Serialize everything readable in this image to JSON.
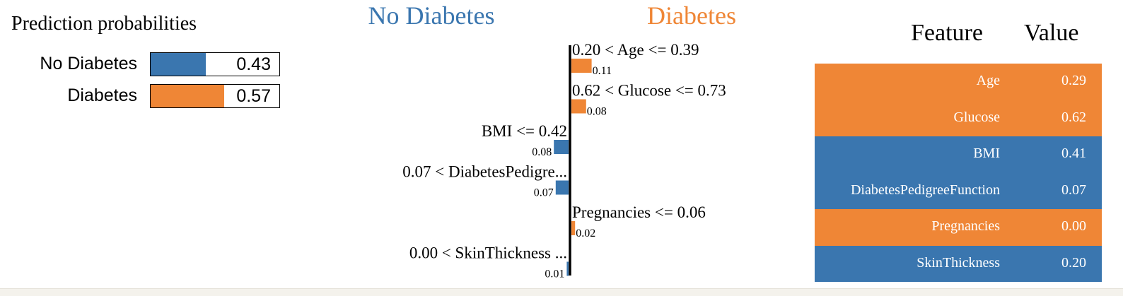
{
  "colors": {
    "negative": "#3a76af",
    "positive": "#ef8636",
    "axis": "#000000"
  },
  "prediction": {
    "title": "Prediction probabilities",
    "classes": [
      {
        "label": "No Diabetes",
        "value": "0.43",
        "prob": 0.43,
        "color": "#3a76af"
      },
      {
        "label": "Diabetes",
        "value": "0.57",
        "prob": 0.57,
        "color": "#ef8636"
      }
    ]
  },
  "chart_data": {
    "type": "bar",
    "orientation": "horizontal",
    "left_class": "No Diabetes",
    "right_class": "Diabetes",
    "bars": [
      {
        "label": "0.20 < Age <= 0.39",
        "value": 0.11,
        "value_label": "0.11",
        "side": "right"
      },
      {
        "label": "0.62 < Glucose <= 0.73",
        "value": 0.08,
        "value_label": "0.08",
        "side": "right"
      },
      {
        "label": "BMI <= 0.42",
        "value": 0.08,
        "value_label": "0.08",
        "side": "left"
      },
      {
        "label": "0.07 < DiabetesPedigre...",
        "value": 0.07,
        "value_label": "0.07",
        "side": "left"
      },
      {
        "label": "Pregnancies <= 0.06",
        "value": 0.02,
        "value_label": "0.02",
        "side": "right"
      },
      {
        "label": "0.00 < SkinThickness ...",
        "value": 0.01,
        "value_label": "0.01",
        "side": "left"
      }
    ]
  },
  "table": {
    "headers": {
      "feature": "Feature",
      "value": "Value"
    },
    "rows": [
      {
        "feature": "Age",
        "value": "0.29",
        "side": "positive"
      },
      {
        "feature": "Glucose",
        "value": "0.62",
        "side": "positive"
      },
      {
        "feature": "BMI",
        "value": "0.41",
        "side": "negative"
      },
      {
        "feature": "DiabetesPedigreeFunction",
        "value": "0.07",
        "side": "negative"
      },
      {
        "feature": "Pregnancies",
        "value": "0.00",
        "side": "positive"
      },
      {
        "feature": "SkinThickness",
        "value": "0.20",
        "side": "negative"
      }
    ]
  }
}
